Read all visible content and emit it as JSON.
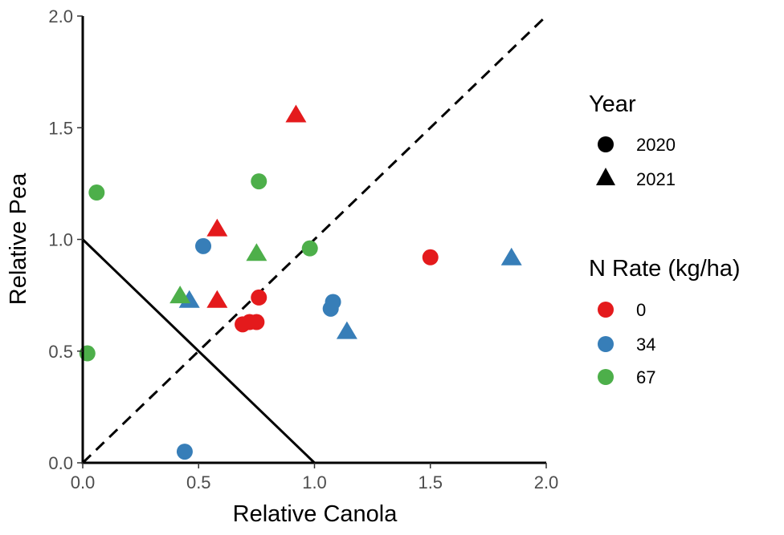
{
  "chart_data": {
    "type": "scatter",
    "title": "",
    "xlabel": "Relative Canola",
    "ylabel": "Relative Pea",
    "xlim": [
      0,
      2
    ],
    "ylim": [
      0,
      2
    ],
    "x_ticks": [
      "0.0",
      "0.5",
      "1.0",
      "1.5",
      "2.0"
    ],
    "y_ticks": [
      "0.0",
      "0.5",
      "1.0",
      "1.5",
      "2.0"
    ],
    "grid": false,
    "reference_lines": [
      {
        "name": "one-to-one line",
        "style": "dashed",
        "from": [
          0,
          0
        ],
        "to": [
          2,
          2
        ]
      },
      {
        "name": "replacement line",
        "style": "solid",
        "from": [
          0,
          1
        ],
        "to": [
          1,
          0
        ]
      }
    ],
    "legend_placement": "right",
    "legends": {
      "year": {
        "title": "Year",
        "entries": [
          {
            "label": "2020",
            "shape": "circle"
          },
          {
            "label": "2021",
            "shape": "triangle"
          }
        ]
      },
      "n_rate": {
        "title": "N Rate (kg/ha)",
        "entries": [
          {
            "label": "0",
            "color": "#e41a1c"
          },
          {
            "label": "34",
            "color": "#377eb8"
          },
          {
            "label": "67",
            "color": "#4daf4a"
          }
        ]
      }
    },
    "points": [
      {
        "x": 0.69,
        "y": 0.62,
        "year": "2020",
        "n_rate": "0"
      },
      {
        "x": 0.72,
        "y": 0.63,
        "year": "2020",
        "n_rate": "0"
      },
      {
        "x": 0.75,
        "y": 0.63,
        "year": "2020",
        "n_rate": "0"
      },
      {
        "x": 0.76,
        "y": 0.74,
        "year": "2020",
        "n_rate": "0"
      },
      {
        "x": 1.5,
        "y": 0.92,
        "year": "2020",
        "n_rate": "0"
      },
      {
        "x": 0.92,
        "y": 1.56,
        "year": "2021",
        "n_rate": "0"
      },
      {
        "x": 0.58,
        "y": 1.05,
        "year": "2021",
        "n_rate": "0"
      },
      {
        "x": 0.58,
        "y": 0.73,
        "year": "2021",
        "n_rate": "0"
      },
      {
        "x": 0.52,
        "y": 0.97,
        "year": "2020",
        "n_rate": "34"
      },
      {
        "x": 1.08,
        "y": 0.72,
        "year": "2020",
        "n_rate": "34"
      },
      {
        "x": 1.07,
        "y": 0.69,
        "year": "2020",
        "n_rate": "34"
      },
      {
        "x": 0.44,
        "y": 0.05,
        "year": "2020",
        "n_rate": "34"
      },
      {
        "x": 0.46,
        "y": 0.73,
        "year": "2021",
        "n_rate": "34"
      },
      {
        "x": 1.14,
        "y": 0.59,
        "year": "2021",
        "n_rate": "34"
      },
      {
        "x": 1.85,
        "y": 0.92,
        "year": "2021",
        "n_rate": "34"
      },
      {
        "x": 0.06,
        "y": 1.21,
        "year": "2020",
        "n_rate": "67"
      },
      {
        "x": 0.76,
        "y": 1.26,
        "year": "2020",
        "n_rate": "67"
      },
      {
        "x": 0.98,
        "y": 0.96,
        "year": "2020",
        "n_rate": "67"
      },
      {
        "x": 0.02,
        "y": 0.49,
        "year": "2020",
        "n_rate": "67"
      },
      {
        "x": 0.75,
        "y": 0.94,
        "year": "2021",
        "n_rate": "67"
      },
      {
        "x": 0.42,
        "y": 0.75,
        "year": "2021",
        "n_rate": "67"
      }
    ]
  }
}
